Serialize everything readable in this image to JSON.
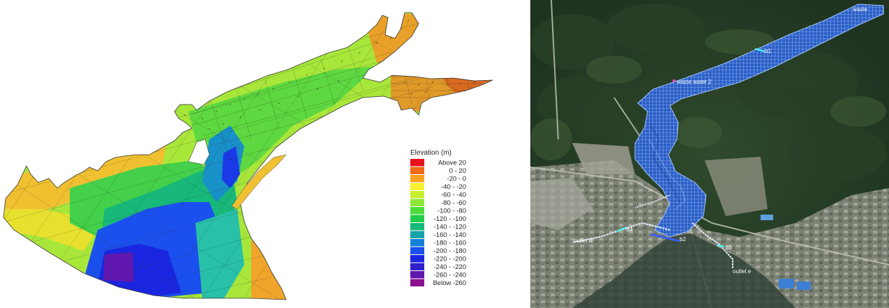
{
  "elevation_map": {
    "legend": {
      "title": "Elevation (m)",
      "items": [
        {
          "label": "Above  20",
          "color": "#e8101a"
        },
        {
          "label": "0 -  20",
          "color": "#f06a18"
        },
        {
          "label": "-20 -    0",
          "color": "#f7a020"
        },
        {
          "label": "-40 -  -20",
          "color": "#f7ef30"
        },
        {
          "label": "-60 -  -40",
          "color": "#c8f030"
        },
        {
          "label": "-80 -  -60",
          "color": "#8ee838"
        },
        {
          "label": "-100 -  -80",
          "color": "#4edc3a"
        },
        {
          "label": "-120 - -100",
          "color": "#22cc4a"
        },
        {
          "label": "-140 - -120",
          "color": "#18b878"
        },
        {
          "label": "-160 - -140",
          "color": "#14a4a8"
        },
        {
          "label": "-180 - -160",
          "color": "#1480d8"
        },
        {
          "label": "-200 - -180",
          "color": "#1a50ee"
        },
        {
          "label": "-220 - -200",
          "color": "#1a26e0"
        },
        {
          "label": "-240 - -220",
          "color": "#3020c8"
        },
        {
          "label": "-260 - -240",
          "color": "#6018b0"
        },
        {
          "label": "Below -260",
          "color": "#8a1090"
        }
      ]
    }
  },
  "satellite_map": {
    "labels": [
      {
        "id": "waste",
        "text": "waste"
      },
      {
        "id": "b1",
        "text": "b1"
      },
      {
        "id": "waste-water-2",
        "text": "waste water 2"
      },
      {
        "id": "b4",
        "text": "b4"
      },
      {
        "id": "b2",
        "text": "b2"
      },
      {
        "id": "outlet-w",
        "text": "outlet w"
      },
      {
        "id": "b3",
        "text": "b3"
      },
      {
        "id": "outlet-e",
        "text": "outlet e"
      }
    ]
  }
}
